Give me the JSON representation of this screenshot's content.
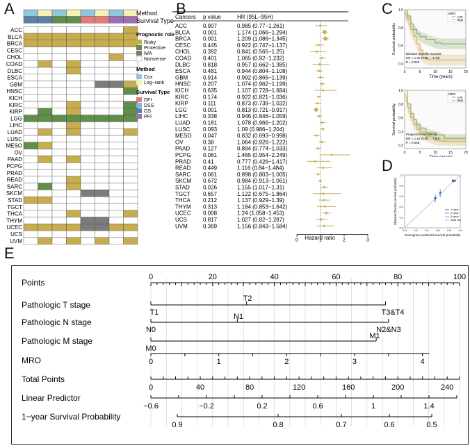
{
  "colors": {
    "risky": "#c8ad50",
    "protective": "#5f8f4a",
    "na": "#7c7c7c",
    "nonsense": "#ffffff",
    "cox": "#8fc7de",
    "logrank": "#f5f0b5",
    "dfi": "#e87a7a",
    "dss": "#7fb6d8",
    "os": "#5a7fa8",
    "pfi": "#9f6fb6",
    "grid": "#cccccc",
    "lowKM": "#7fa45a",
    "highKM": "#d1ad57"
  },
  "panelA": {
    "label": "A",
    "method_label": "Method",
    "survival_label": "Survival Type",
    "method_row": [
      "cox",
      "logrank",
      "cox",
      "logrank",
      "cox",
      "logrank",
      "cox",
      "logrank"
    ],
    "survival_row": [
      "os",
      "os",
      "protective",
      "protective",
      "dfi",
      "dfi",
      "pfi",
      "pfi"
    ],
    "cancers": [
      "ACC",
      "BLCA",
      "BRCA",
      "CESC",
      "CHOL",
      "COAD",
      "DLBC",
      "ESCA",
      "GBM",
      "HNSC",
      "KICH",
      "KIRC",
      "KIRP",
      "LGG",
      "LIHC",
      "LUAD",
      "LUSC",
      "MESO",
      "OV",
      "PAAD",
      "PCPG",
      "PRAD",
      "READ",
      "SARC",
      "SKCM",
      "STAD",
      "TGCT",
      "THCA",
      "THYM",
      "UCEC",
      "UCS",
      "UVM"
    ],
    "cells": [
      [
        "",
        "",
        "",
        "",
        "",
        "",
        "",
        "R"
      ],
      [
        "R",
        "R",
        "R",
        "R",
        "R",
        "R",
        "R",
        "R"
      ],
      [
        "R",
        "R",
        "R",
        "R",
        "R",
        "R",
        "R",
        "R"
      ],
      [
        "",
        "",
        "",
        "",
        "",
        "",
        "",
        ""
      ],
      [
        "",
        "",
        "",
        "",
        "",
        "",
        "R",
        ""
      ],
      [
        "",
        "R",
        "",
        "R",
        "",
        "",
        "",
        ""
      ],
      [
        "",
        "",
        "",
        "R",
        "",
        "",
        "",
        ""
      ],
      [
        "",
        "",
        "",
        "",
        "",
        "",
        "",
        ""
      ],
      [
        "",
        "",
        "",
        "",
        "",
        "N",
        "N",
        "R"
      ],
      [
        "",
        "",
        "",
        "",
        "",
        "",
        "",
        "P"
      ],
      [
        "",
        "",
        "",
        "",
        "",
        "",
        "",
        ""
      ],
      [
        "",
        "",
        "",
        "R",
        "",
        "",
        "",
        "P"
      ],
      [
        "",
        "P",
        "",
        "R",
        "",
        "",
        "",
        "P"
      ],
      [
        "P",
        "P",
        "P",
        "P",
        "P",
        "P",
        "P",
        "P"
      ],
      [
        "",
        "",
        "",
        "R",
        "",
        "",
        "",
        ""
      ],
      [
        "",
        "R",
        "",
        "R",
        "",
        "",
        "",
        "R"
      ],
      [
        "",
        "",
        "",
        "",
        "",
        "",
        "",
        ""
      ],
      [
        "P",
        "R",
        "",
        "",
        "",
        "",
        "",
        ""
      ],
      [
        "",
        "",
        "",
        "",
        "",
        "",
        "",
        ""
      ],
      [
        "",
        "R",
        "",
        "R",
        "",
        "",
        "",
        ""
      ],
      [
        "",
        "",
        "",
        "",
        "",
        "",
        "",
        ""
      ],
      [
        "",
        "",
        "",
        "",
        "",
        "",
        "",
        ""
      ],
      [
        "",
        "",
        "",
        "R",
        "",
        "",
        "",
        ""
      ],
      [
        "",
        "P",
        "",
        "R",
        "",
        "",
        "",
        ""
      ],
      [
        "",
        "",
        "",
        "",
        "N",
        "N",
        "",
        ""
      ],
      [
        "R",
        "R",
        "",
        "",
        "",
        "",
        "",
        ""
      ],
      [
        "",
        "",
        "",
        "",
        "",
        "",
        "",
        ""
      ],
      [
        "",
        "",
        "",
        "R",
        "",
        "",
        "",
        "R"
      ],
      [
        "",
        "",
        "",
        "",
        "N",
        "N",
        "",
        ""
      ],
      [
        "R",
        "R",
        "R",
        "R",
        "N",
        "N",
        "R",
        "R"
      ],
      [
        "",
        "",
        "",
        "",
        "",
        "",
        "",
        ""
      ],
      [
        "",
        "R",
        "",
        "R",
        "",
        "R",
        "",
        "R"
      ]
    ],
    "legend": {
      "prog_title": "Prognostic role",
      "risky": "Risky",
      "protective": "Protective",
      "na": "N/A",
      "nonsense": "Nonsense",
      "method_title": "Method",
      "cox": "Cox",
      "logrank": "Log−rank",
      "surv_title": "Survival Type",
      "dfi": "DFI",
      "dss": "DSS",
      "os": "OS",
      "pfi": "PFI"
    }
  },
  "panelB": {
    "label": "B",
    "header_cancers": "Cancers",
    "header_p": "p value",
    "header_hr": "HR (95L−95H)",
    "xlabel": "Hazard ratio",
    "xticks": [
      0,
      1,
      2,
      3
    ],
    "rows": [
      {
        "c": "ACC",
        "p": "0.907",
        "hr": "0.985 (0.77−1.261)",
        "v": 0.985,
        "lo": 0.77,
        "hi": 1.261
      },
      {
        "c": "BLCA",
        "p": "0.001",
        "hr": "1.174 (1.066−1.294)",
        "v": 1.174,
        "lo": 1.066,
        "hi": 1.294
      },
      {
        "c": "BRCA",
        "p": "0.001",
        "hr": "1.209 (1.086−1.345)",
        "v": 1.209,
        "lo": 1.086,
        "hi": 1.345
      },
      {
        "c": "CESC",
        "p": "0.445",
        "hr": "0.922 (0.747−1.137)",
        "v": 0.922,
        "lo": 0.747,
        "hi": 1.137
      },
      {
        "c": "CHOL",
        "p": "0.392",
        "hr": "0.841 (0.565−1.25)",
        "v": 0.841,
        "lo": 0.565,
        "hi": 1.25
      },
      {
        "c": "COAD",
        "p": "0.401",
        "hr": "1.065 (0.92−1.232)",
        "v": 1.065,
        "lo": 0.92,
        "hi": 1.232
      },
      {
        "c": "DLBC",
        "p": "0.818",
        "hr": "0.957 (0.662−1.385)",
        "v": 0.957,
        "lo": 0.662,
        "hi": 1.385
      },
      {
        "c": "ESCA",
        "p": "0.481",
        "hr": "0.944 (0.804−1.108)",
        "v": 0.944,
        "lo": 0.804,
        "hi": 1.108
      },
      {
        "c": "GBM",
        "p": "0.914",
        "hr": "0.992 (0.865−1.139)",
        "v": 0.992,
        "lo": 0.865,
        "hi": 1.139
      },
      {
        "c": "HNSC",
        "p": "0.207",
        "hr": "1.074 (0.962−1.199)",
        "v": 1.074,
        "lo": 0.962,
        "hi": 1.199
      },
      {
        "c": "KICH",
        "p": "0.635",
        "hr": "1.107 (0.728−1.684)",
        "v": 1.107,
        "lo": 0.728,
        "hi": 1.684
      },
      {
        "c": "KIRC",
        "p": "0.174",
        "hr": "0.922 (0.821−1.036)",
        "v": 0.922,
        "lo": 0.821,
        "hi": 1.036
      },
      {
        "c": "KIRP",
        "p": "0.111",
        "hr": "0.873 (0.739−1.032)",
        "v": 0.873,
        "lo": 0.739,
        "hi": 1.032
      },
      {
        "c": "LGG",
        "p": "0.001",
        "hr": "0.813 (0.721−0.917)",
        "v": 0.813,
        "lo": 0.721,
        "hi": 0.917
      },
      {
        "c": "LIHC",
        "p": "0.338",
        "hr": "0.946 (0.846−1.059)",
        "v": 0.946,
        "lo": 0.846,
        "hi": 1.059
      },
      {
        "c": "LUAD",
        "p": "0.181",
        "hr": "1.078 (0.966−1.202)",
        "v": 1.078,
        "lo": 0.966,
        "hi": 1.202
      },
      {
        "c": "LUSC",
        "p": "0.093",
        "hr": "1.09 (0.986−1.204)",
        "v": 1.09,
        "lo": 0.986,
        "hi": 1.204
      },
      {
        "c": "MESO",
        "p": "0.047",
        "hr": "0.832 (0.693−0.998)",
        "v": 0.832,
        "lo": 0.693,
        "hi": 0.998
      },
      {
        "c": "OV",
        "p": "0.38",
        "hr": "1.064 (0.926−1.222)",
        "v": 1.064,
        "lo": 0.926,
        "hi": 1.222
      },
      {
        "c": "PAAD",
        "p": "0.127",
        "hr": "0.894 (0.774−1.033)",
        "v": 0.894,
        "lo": 0.774,
        "hi": 1.033
      },
      {
        "c": "PCPG",
        "p": "0.081",
        "hr": "1.465 (0.954−2.249)",
        "v": 1.465,
        "lo": 0.954,
        "hi": 2.249
      },
      {
        "c": "PRAD",
        "p": "0.41",
        "hr": "0.777 (0.426−1.417)",
        "v": 0.777,
        "lo": 0.426,
        "hi": 1.417
      },
      {
        "c": "READ",
        "p": "0.449",
        "hr": "1.116 (0.84−1.484)",
        "v": 1.116,
        "lo": 0.84,
        "hi": 1.484
      },
      {
        "c": "SARC",
        "p": "0.061",
        "hr": "0.898 (0.803−1.005)",
        "v": 0.898,
        "lo": 0.803,
        "hi": 1.005
      },
      {
        "c": "SKCM",
        "p": "0.672",
        "hr": "0.984 (0.913−1.061)",
        "v": 0.984,
        "lo": 0.913,
        "hi": 1.061
      },
      {
        "c": "STAD",
        "p": "0.026",
        "hr": "1.155 (1.017−1.31)",
        "v": 1.155,
        "lo": 1.017,
        "hi": 1.31
      },
      {
        "c": "TGCT",
        "p": "0.657",
        "hr": "1.122 (0.675−1.864)",
        "v": 1.122,
        "lo": 0.675,
        "hi": 1.864
      },
      {
        "c": "THCA",
        "p": "0.212",
        "hr": "1.137 (0.929−1.39)",
        "v": 1.137,
        "lo": 0.929,
        "hi": 1.39
      },
      {
        "c": "THYM",
        "p": "0.313",
        "hr": "1.184 (0.853−1.642)",
        "v": 1.184,
        "lo": 0.853,
        "hi": 1.642
      },
      {
        "c": "UCEC",
        "p": "0.008",
        "hr": "1.24 (1.058−1.453)",
        "v": 1.24,
        "lo": 1.058,
        "hi": 1.453
      },
      {
        "c": "UCS",
        "p": "0.817",
        "hr": "1.027 (0.82−1.287)",
        "v": 1.027,
        "lo": 0.82,
        "hi": 1.287
      },
      {
        "c": "UVM",
        "p": "0.369",
        "hr": "1.156 (0.843−1.584)",
        "v": 1.156,
        "lo": 0.843,
        "hi": 1.584
      }
    ]
  },
  "panelC": {
    "label": "C",
    "legend_title": "MRO",
    "low": "Low",
    "high": "High",
    "ylabel": "Survival probability",
    "xlabel": "Time (years)",
    "xticks": [
      0,
      5,
      10,
      15,
      20
    ],
    "plot1": {
      "yticks": [
        0.4,
        0.6,
        0.8,
        1.0
      ],
      "annot1": "Disease Specific Survival",
      "annot2": "HR = 1.32 (1.00 ... 1.73)",
      "annot3": "P = 0.052",
      "low": [
        [
          0,
          1
        ],
        [
          1,
          0.93
        ],
        [
          2,
          0.84
        ],
        [
          3,
          0.78
        ],
        [
          4,
          0.73
        ],
        [
          5,
          0.7
        ],
        [
          7,
          0.67
        ],
        [
          10,
          0.63
        ],
        [
          12,
          0.62
        ],
        [
          20,
          0.62
        ]
      ],
      "high": [
        [
          0,
          1
        ],
        [
          1,
          0.9
        ],
        [
          2,
          0.78
        ],
        [
          3,
          0.7
        ],
        [
          4,
          0.62
        ],
        [
          5,
          0.55
        ],
        [
          6,
          0.47
        ],
        [
          7,
          0.45
        ],
        [
          8,
          0.44
        ],
        [
          20,
          0.44
        ]
      ]
    },
    "plot2": {
      "yticks": [
        0.2,
        0.4,
        0.6,
        0.8,
        1.0
      ],
      "annot1": "Progress Free Interval",
      "annot2": "HR = 1.22 (0.99 ... 1.50)",
      "annot3": "P = 0.056",
      "low": [
        [
          0,
          1
        ],
        [
          1,
          0.8
        ],
        [
          2,
          0.66
        ],
        [
          3,
          0.57
        ],
        [
          4,
          0.5
        ],
        [
          5,
          0.45
        ],
        [
          7,
          0.38
        ],
        [
          10,
          0.35
        ],
        [
          13,
          0.3
        ],
        [
          20,
          0.3
        ]
      ],
      "high": [
        [
          0,
          1
        ],
        [
          1,
          0.75
        ],
        [
          2,
          0.6
        ],
        [
          3,
          0.5
        ],
        [
          4,
          0.43
        ],
        [
          5,
          0.38
        ],
        [
          7,
          0.32
        ],
        [
          10,
          0.26
        ],
        [
          13,
          0.25
        ],
        [
          20,
          0.25
        ]
      ]
    }
  },
  "panelD": {
    "label": "D",
    "xlabel": "Nomogram predicted survival probability",
    "ylabel": "Observed fraction survival probability",
    "ticks": [
      0.0,
      0.2,
      0.4,
      0.6,
      0.8,
      1.0
    ],
    "legend": [
      "1−year",
      "3−year",
      "5−year",
      "Ideal line"
    ],
    "colors": [
      "#2a4fa8",
      "#2a7ec9",
      "#5aa0d8",
      "#aaaaaa"
    ],
    "points": [
      {
        "s": 0,
        "x": 0.55,
        "y": 0.56,
        "lo": 0.48,
        "hi": 0.63
      },
      {
        "s": 1,
        "x": 0.64,
        "y": 0.66,
        "lo": 0.58,
        "hi": 0.73
      },
      {
        "s": 0,
        "x": 0.87,
        "y": 0.89,
        "lo": 0.86,
        "hi": 0.92
      },
      {
        "s": 1,
        "x": 0.9,
        "y": 0.89,
        "lo": 0.87,
        "hi": 0.91
      }
    ]
  },
  "panelE": {
    "label": "E",
    "points_label": "Points",
    "points_ticks": [
      0,
      20,
      40,
      60,
      80,
      100
    ],
    "t_label": "Pathologic T stage",
    "t_T1": "T1",
    "t_T2": "T2",
    "t_T34": "T3&T4",
    "n_label": "Pathologic N stage",
    "n_N0": "N0",
    "n_N1": "N1",
    "n_N23": "N2&N3",
    "m_label": "Pathologic M stage",
    "m_M0": "M0",
    "m_M1": "M1",
    "mro_label": "MRO",
    "mro_ticks": [
      0,
      1,
      2,
      3,
      4
    ],
    "total_label": "Total Points",
    "total_ticks": [
      0,
      40,
      80,
      120,
      160,
      200,
      240
    ],
    "lp_label": "Linear Predictor",
    "lp_ticks": [
      "−0.6",
      "−0.2",
      "0.2",
      "0.6",
      "1",
      "1.4"
    ],
    "surv_label": "1−year Survival Probability",
    "surv_ticks": [
      "0.9",
      "0.8",
      "0.7",
      "0.6",
      "0.5"
    ]
  }
}
